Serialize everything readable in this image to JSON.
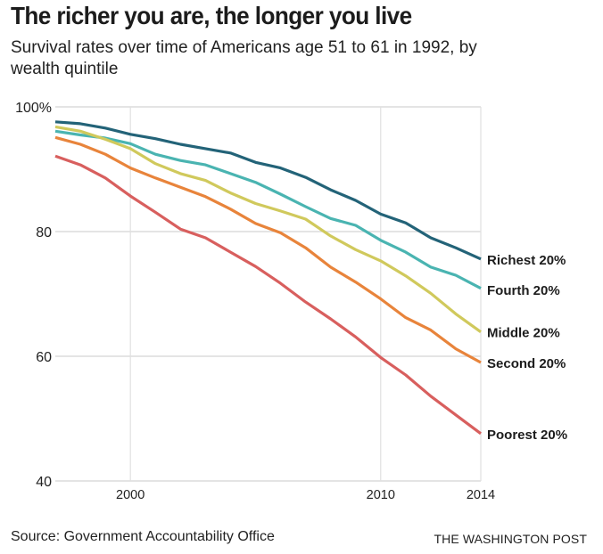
{
  "chart_data": {
    "type": "line",
    "title": "The richer you are, the longer you live",
    "subtitle": "Survival rates over time of Americans age 51 to 61 in 1992, by wealth quintile",
    "xlabel": "",
    "ylabel": "",
    "x": [
      1997,
      1998,
      1999,
      2000,
      2001,
      2002,
      2003,
      2004,
      2005,
      2006,
      2007,
      2008,
      2009,
      2010,
      2011,
      2012,
      2013,
      2014
    ],
    "xlim": [
      1997,
      2014
    ],
    "ylim": [
      40,
      100
    ],
    "x_ticks": [
      {
        "value": 2000,
        "label": "2000"
      },
      {
        "value": 2010,
        "label": "2010"
      },
      {
        "value": 2014,
        "label": "2014"
      }
    ],
    "y_ticks": [
      {
        "value": 100,
        "label": "100%"
      },
      {
        "value": 80,
        "label": "80"
      },
      {
        "value": 60,
        "label": "60"
      },
      {
        "value": 40,
        "label": "40"
      }
    ],
    "grid": true,
    "legend": "direct labels at right end of lines",
    "series": [
      {
        "name": "Richest 20%",
        "color": "#236378",
        "values": [
          97.6,
          97.3,
          96.6,
          95.6,
          94.9,
          94.0,
          93.3,
          92.6,
          91.1,
          90.2,
          88.7,
          86.7,
          85.0,
          82.8,
          81.4,
          79.0,
          77.4,
          75.6
        ]
      },
      {
        "name": "Fourth 20%",
        "color": "#4ab4b1",
        "values": [
          96.1,
          95.5,
          95.0,
          94.1,
          92.4,
          91.4,
          90.7,
          89.3,
          87.9,
          86.0,
          84.0,
          82.1,
          81.0,
          78.6,
          76.7,
          74.3,
          73.0,
          70.9
        ]
      },
      {
        "name": "Middle 20%",
        "color": "#d0c95c",
        "values": [
          96.8,
          96.1,
          94.8,
          93.3,
          90.9,
          89.3,
          88.2,
          86.2,
          84.5,
          83.3,
          82.0,
          79.3,
          77.1,
          75.3,
          72.9,
          70.1,
          66.8,
          63.9
        ]
      },
      {
        "name": "Second 20%",
        "color": "#e8843b",
        "values": [
          95.1,
          94.0,
          92.4,
          90.2,
          88.6,
          87.1,
          85.6,
          83.6,
          81.3,
          79.8,
          77.4,
          74.3,
          71.9,
          69.2,
          66.2,
          64.2,
          61.2,
          59.0
        ]
      },
      {
        "name": "Poorest 20%",
        "color": "#d85f5e",
        "values": [
          92.1,
          90.7,
          88.6,
          85.7,
          83.1,
          80.4,
          79.0,
          76.7,
          74.4,
          71.7,
          68.7,
          66.0,
          63.1,
          59.8,
          57.0,
          53.6,
          50.6,
          47.6
        ]
      }
    ]
  },
  "footer": {
    "source": "Source: Government Accountability Office",
    "credit": "THE WASHINGTON POST"
  }
}
